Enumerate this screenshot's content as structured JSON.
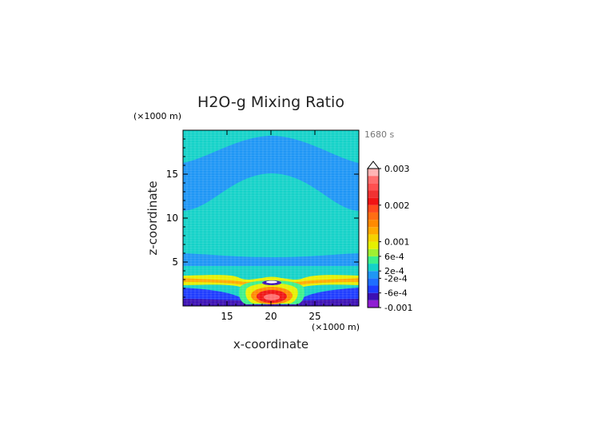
{
  "chart_data": {
    "type": "heatmap",
    "title": "H2O-g Mixing Ratio",
    "xlabel": "x-coordinate",
    "ylabel": "z-coordinate",
    "x_unit": "(×1000 m)",
    "y_unit": "(×1000 m)",
    "time_label": "1680 s",
    "xlim": [
      10,
      30
    ],
    "ylim": [
      0,
      20
    ],
    "x_ticks": [
      15,
      20,
      25
    ],
    "y_ticks": [
      5,
      10,
      15
    ],
    "x_tick_labels": [
      "15",
      "20",
      "25"
    ],
    "y_tick_labels": [
      "5",
      "10",
      "15"
    ],
    "colorbar": {
      "labels": [
        "0.003",
        "0.002",
        "0.001",
        "6e-4",
        "2e-4",
        "-2e-4",
        "-6e-4",
        "-0.001"
      ],
      "label_values": [
        0.003,
        0.002,
        0.001,
        0.0006,
        0.0002,
        -0.0002,
        -0.0006,
        -0.001
      ],
      "levels": [
        -0.001,
        -0.0008,
        -0.0006,
        -0.0004,
        -0.0002,
        0.0002,
        0.0004,
        0.0006,
        0.0008,
        0.001,
        0.0012,
        0.0014,
        0.0016,
        0.0018,
        0.002,
        0.0022,
        0.0024,
        0.0026,
        0.0028,
        0.003
      ],
      "colors": [
        "#8f1ed2",
        "#3c10b4",
        "#1e3cff",
        "#1e6eff",
        "#1e96f5",
        "#14d2c8",
        "#3cf08c",
        "#a0f032",
        "#e6f000",
        "#f5d200",
        "#ffaa00",
        "#ff8a00",
        "#ff6e14",
        "#ff4b1e",
        "#f01414",
        "#f03232",
        "#ff5050",
        "#ff6e6e",
        "#ffb4b4"
      ],
      "extend_top": true
    }
  }
}
